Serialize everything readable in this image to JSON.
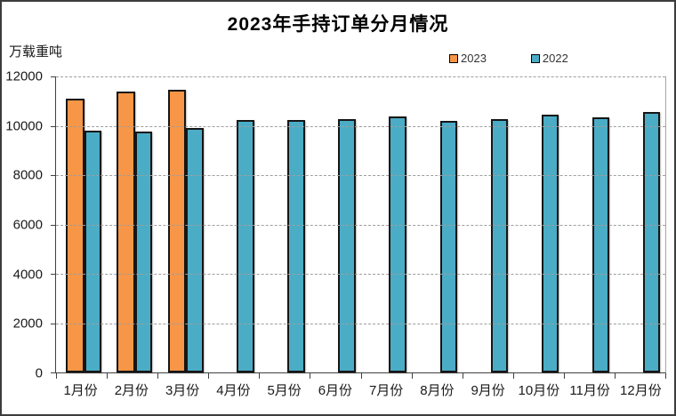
{
  "chart_data": {
    "type": "bar",
    "title": "2023年手持订单分月情况",
    "unit_label": "万载重吨",
    "categories": [
      "1月份",
      "2月份",
      "3月份",
      "4月份",
      "5月份",
      "6月份",
      "7月份",
      "8月份",
      "9月份",
      "10月份",
      "11月份",
      "12月份"
    ],
    "series": [
      {
        "name": "2023",
        "color": "#F79646",
        "values": [
          11113,
          11384,
          11452,
          null,
          null,
          null,
          null,
          null,
          null,
          null,
          null,
          null
        ]
      },
      {
        "name": "2022",
        "color": "#4BACC6",
        "values": [
          9817,
          9783,
          9906,
          10247,
          10230,
          10274,
          10366,
          10206,
          10254,
          10437,
          10355,
          10557
        ]
      }
    ],
    "ylim": [
      0,
      12000
    ],
    "y_tick_step": 2000,
    "y_ticks": [
      0,
      2000,
      4000,
      6000,
      8000,
      10000,
      12000
    ],
    "grid": "horizontal-dashed",
    "legend_position": "top-right",
    "colors": {
      "bar_border": "#161616",
      "axis": "#404040",
      "gridline": "#9e9e9e"
    }
  }
}
